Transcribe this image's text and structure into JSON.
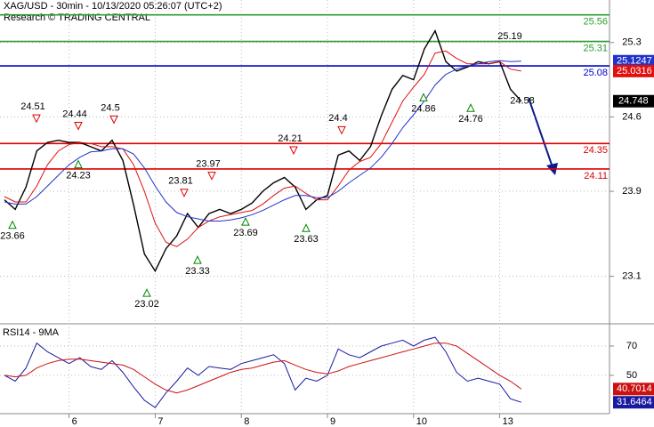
{
  "header": {
    "title": "XAG/USD - 30min - 10/13/2020 05:26:07 (UTC+2)",
    "subtitle": "Research © TRADING CENTRAL"
  },
  "chart_data": [
    {
      "type": "line",
      "categories": [
        null,
        null,
        null,
        null,
        null,
        null,
        "6",
        null,
        null,
        null,
        null,
        null,
        null,
        null,
        "7",
        null,
        null,
        null,
        null,
        null,
        null,
        null,
        "8",
        null,
        null,
        null,
        null,
        null,
        null,
        null,
        "9",
        null,
        null,
        null,
        null,
        null,
        null,
        null,
        "10",
        null,
        null,
        null,
        null,
        null,
        null,
        null,
        "13",
        null,
        null
      ],
      "series": [
        {
          "color": "#000000",
          "values": [
            23.82,
            23.73,
            23.94,
            24.28,
            24.36,
            24.38,
            24.36,
            24.36,
            24.32,
            24.28,
            24.38,
            24.19,
            23.77,
            23.31,
            23.15,
            23.36,
            23.48,
            23.69,
            23.56,
            23.69,
            23.73,
            23.69,
            23.73,
            23.79,
            23.9,
            23.98,
            24.03,
            23.94,
            23.73,
            23.82,
            23.86,
            24.24,
            24.28,
            24.19,
            24.32,
            24.61,
            24.86,
            24.99,
            24.95,
            25.24,
            25.41,
            25.12,
            25.03,
            25.07,
            25.12,
            25.1,
            25.12,
            24.86,
            24.748
          ]
        },
        {
          "color": "#e01010",
          "values": [
            23.85,
            23.8,
            23.8,
            23.95,
            24.15,
            24.28,
            24.34,
            24.36,
            24.35,
            24.32,
            24.32,
            24.3,
            24.15,
            23.9,
            23.6,
            23.42,
            23.38,
            23.45,
            23.56,
            23.62,
            23.66,
            23.68,
            23.7,
            23.72,
            23.78,
            23.86,
            23.93,
            23.95,
            23.88,
            23.82,
            23.82,
            23.95,
            24.1,
            24.18,
            24.22,
            24.35,
            24.55,
            24.75,
            24.88,
            25.0,
            25.2,
            25.22,
            25.15,
            25.1,
            25.1,
            25.1,
            25.12,
            25.05,
            25.0316
          ]
        },
        {
          "color": "#2233cc",
          "values": [
            23.8,
            23.78,
            23.78,
            23.85,
            23.95,
            24.05,
            24.15,
            24.22,
            24.27,
            24.28,
            24.3,
            24.3,
            24.25,
            24.12,
            23.95,
            23.8,
            23.7,
            23.66,
            23.64,
            23.62,
            23.62,
            23.63,
            23.65,
            23.68,
            23.72,
            23.77,
            23.82,
            23.86,
            23.86,
            23.84,
            23.84,
            23.9,
            23.98,
            24.05,
            24.12,
            24.22,
            24.35,
            24.5,
            24.62,
            24.75,
            24.9,
            25.0,
            25.05,
            25.08,
            25.1,
            25.12,
            25.13,
            25.12,
            25.1247
          ]
        }
      ],
      "ylim": [
        22.67,
        25.7
      ],
      "yticks": [
        25.3,
        24.6,
        23.9,
        23.1
      ],
      "grid": true,
      "levels": [
        {
          "value": 25.56,
          "color": "#2e9e2e"
        },
        {
          "value": 25.31,
          "color": "#2e9e2e"
        },
        {
          "value": 25.08,
          "color": "#0000cc"
        },
        {
          "value": 24.35,
          "color": "#dd0000"
        },
        {
          "value": 24.11,
          "color": "#dd0000"
        }
      ],
      "annotations": [
        {
          "value": 24.51,
          "kind": "high"
        },
        {
          "value": 24.44,
          "kind": "high"
        },
        {
          "value": 24.5,
          "kind": "high"
        },
        {
          "value": 23.81,
          "kind": "high"
        },
        {
          "value": 23.97,
          "kind": "high"
        },
        {
          "value": 24.21,
          "kind": "high"
        },
        {
          "value": 24.4,
          "kind": "high"
        },
        {
          "value": 23.66,
          "kind": "low"
        },
        {
          "value": 24.23,
          "kind": "low"
        },
        {
          "value": 23.02,
          "kind": "low"
        },
        {
          "value": 23.33,
          "kind": "low"
        },
        {
          "value": 23.69,
          "kind": "low"
        },
        {
          "value": 23.63,
          "kind": "low"
        },
        {
          "value": 24.86,
          "kind": "low"
        },
        {
          "value": 24.76,
          "kind": "low"
        },
        {
          "value": 25.19,
          "kind": "note"
        },
        {
          "value": 24.58,
          "kind": "note"
        }
      ]
    },
    {
      "type": "line",
      "title": "RSI14 - 9MA",
      "series": [
        {
          "color": "#1a1aa0",
          "values": [
            50,
            46,
            55,
            72,
            66,
            62,
            58,
            62,
            56,
            54,
            60,
            52,
            42,
            33,
            28,
            38,
            46,
            55,
            50,
            56,
            55,
            54,
            58,
            60,
            62,
            64,
            58,
            40,
            48,
            46,
            50,
            68,
            64,
            62,
            66,
            70,
            72,
            74,
            70,
            74,
            76,
            66,
            52,
            46,
            48,
            46,
            44,
            34,
            31.6464
          ]
        },
        {
          "color": "#cc1111",
          "values": [
            50,
            49,
            50,
            55,
            58,
            60,
            61,
            61,
            60,
            59,
            58,
            57,
            54,
            49,
            44,
            40,
            38,
            40,
            43,
            46,
            49,
            52,
            54,
            55,
            57,
            59,
            60,
            57,
            54,
            52,
            51,
            53,
            56,
            58,
            60,
            62,
            64,
            66,
            68,
            70,
            72,
            72,
            70,
            65,
            60,
            55,
            50,
            46,
            40.7014
          ]
        }
      ],
      "ylim": [
        23.9,
        82.7
      ],
      "yticks": [
        70,
        50
      ],
      "grid": true
    }
  ]
}
